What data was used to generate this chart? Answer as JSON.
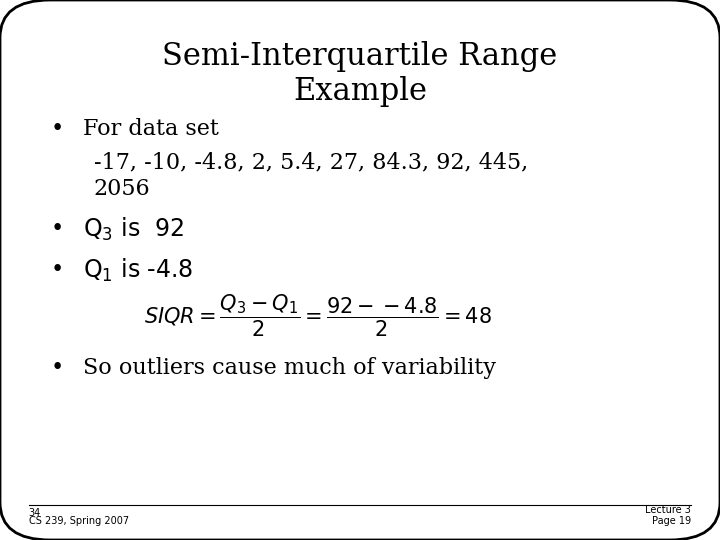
{
  "title_line1": "Semi-Interquartile Range",
  "title_line2": "Example",
  "bullet1": "For data set",
  "data_line1": "-17, -10, -4.8, 2, 5.4, 27, 84.3, 92, 445,",
  "data_line2": "2056",
  "footer_left_num": "34",
  "footer_left": "CS 239, Spring 2007",
  "footer_right_top": "Lecture 3",
  "footer_right_bot": "Page 19",
  "bg_color": "#ffffff",
  "border_color": "#000000",
  "text_color": "#000000"
}
